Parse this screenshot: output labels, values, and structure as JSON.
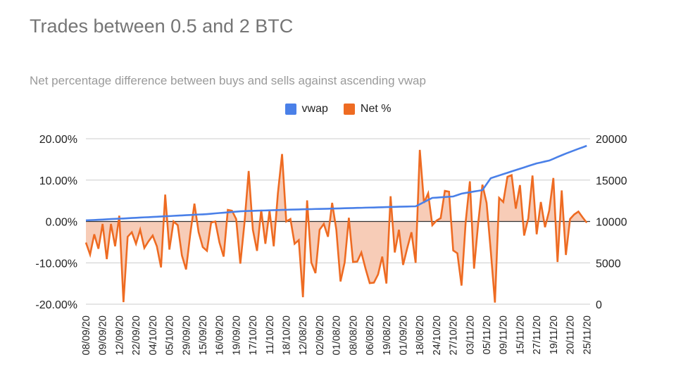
{
  "chart_data": {
    "type": "line",
    "title": "Trades between 0.5 and 2 BTC",
    "subtitle": "Net percentage difference between buys and sells against ascending vwap",
    "legend_position": "top",
    "grid": true,
    "x_tick_labels": [
      "08/09/20",
      "09/09/20",
      "12/09/20",
      "22/09/20",
      "04/10/20",
      "05/10/20",
      "29/09/20",
      "15/09/20",
      "16/09/20",
      "19/09/20",
      "17/10/20",
      "11/10/20",
      "18/10/20",
      "12/08/20",
      "02/09/20",
      "01/08/20",
      "08/08/20",
      "06/08/20",
      "19/08/20",
      "01/09/20",
      "18/08/20",
      "24/10/20",
      "27/10/20",
      "03/11/20",
      "05/11/20",
      "09/11/20",
      "15/11/20",
      "27/11/20",
      "19/11/20",
      "20/11/20",
      "25/11/20"
    ],
    "x_tick_every": 4,
    "left_axis": {
      "ylim": [
        -20,
        20
      ],
      "ticks": [
        "-20.00%",
        "-10.00%",
        "0.00%",
        "10.00%",
        "20.00%"
      ]
    },
    "right_axis": {
      "ylim": [
        0,
        20000
      ],
      "ticks": [
        "0",
        "5000",
        "10000",
        "15000",
        "20000"
      ]
    },
    "series": [
      {
        "name": "vwap",
        "axis": "right",
        "color": "#4a80e8",
        "values": [
          10130,
          10160,
          10180,
          10210,
          10230,
          10260,
          10290,
          10310,
          10340,
          10360,
          10390,
          10420,
          10440,
          10470,
          10500,
          10520,
          10550,
          10570,
          10600,
          10630,
          10650,
          10680,
          10710,
          10730,
          10760,
          10780,
          10810,
          10840,
          10860,
          10890,
          10930,
          10980,
          11020,
          11060,
          11100,
          11150,
          11190,
          11230,
          11250,
          11270,
          11280,
          11300,
          11320,
          11330,
          11350,
          11370,
          11380,
          11400,
          11410,
          11430,
          11440,
          11450,
          11470,
          11480,
          11490,
          11510,
          11520,
          11530,
          11540,
          11560,
          11570,
          11580,
          11600,
          11610,
          11620,
          11640,
          11650,
          11670,
          11680,
          11690,
          11710,
          11720,
          11740,
          11750,
          11760,
          11780,
          11790,
          11800,
          11820,
          11830,
          12080,
          12340,
          12600,
          12850,
          12880,
          12920,
          12950,
          12990,
          13020,
          13190,
          13360,
          13450,
          13530,
          13620,
          13700,
          13790,
          14510,
          15230,
          15390,
          15560,
          15720,
          15880,
          16050,
          16210,
          16370,
          16530,
          16700,
          16860,
          17020,
          17130,
          17250,
          17360,
          17570,
          17790,
          18000,
          18210,
          18400,
          18590,
          18780,
          18960,
          19150
        ]
      },
      {
        "name": "Net %",
        "axis": "left",
        "color": "#ee6b22",
        "area_fill": "#f6c3aa",
        "values": [
          -5.1,
          -8.0,
          -3.1,
          -6.6,
          -0.6,
          -9.1,
          -0.6,
          -6.0,
          1.4,
          -19.5,
          -3.7,
          -2.6,
          -5.4,
          -2.0,
          -6.4,
          -4.8,
          -3.4,
          -6.0,
          -11.1,
          6.5,
          -6.8,
          0,
          -0.9,
          -8.2,
          -11.6,
          -3.1,
          4.3,
          -2.6,
          -6.2,
          -7.1,
          -0.3,
          0,
          -5.1,
          -8.5,
          2.8,
          2.6,
          0.6,
          -10.2,
          -0.3,
          12.2,
          -2.0,
          -7.1,
          2.8,
          -5.4,
          2.6,
          -6.0,
          6.8,
          16.3,
          0,
          0.6,
          -5.4,
          -4.5,
          -18.3,
          5.1,
          -9.9,
          -12.5,
          -2.0,
          -0.6,
          -3.7,
          4.5,
          -2.0,
          -14.5,
          -9.9,
          0.9,
          -9.8,
          -9.7,
          -7.5,
          -11.4,
          -14.9,
          -14.8,
          -12.8,
          -8.5,
          -15.0,
          6.1,
          -7.5,
          -2.0,
          -10.5,
          -6.4,
          -2.6,
          -10.0,
          17.3,
          4.5,
          6.8,
          -0.9,
          0.2,
          0.8,
          7.4,
          7.2,
          -7.0,
          -7.7,
          -15.5,
          0,
          9.7,
          -11.4,
          -0.3,
          8.9,
          4.5,
          -7.1,
          -19.6,
          5.7,
          4.7,
          10.8,
          11.2,
          3.1,
          8.8,
          -3.4,
          0.8,
          11.1,
          -3.1,
          4.7,
          -1.4,
          2.6,
          10.5,
          -9.8,
          7.5,
          -8.1,
          0.6,
          1.7,
          2.4,
          1.0,
          -0.3
        ]
      }
    ]
  }
}
